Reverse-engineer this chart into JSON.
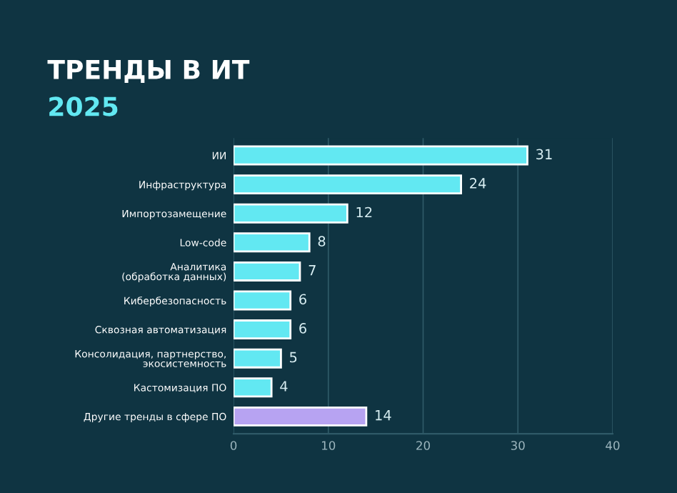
{
  "chart_data": {
    "type": "bar",
    "orientation": "horizontal",
    "title": "ТРЕНДЫ В ИТ",
    "subtitle": "2025",
    "categories": [
      "ИИ",
      "Инфраструктура",
      "Импортозамещение",
      "Low-code",
      "Аналитика\n(обработка данных)",
      "Кибербезопасность",
      "Сквозная автоматизация",
      "Консолидация, партнерство,\nэкосистемность",
      "Кастомизация ПО",
      "Другие тренды в сфере ПО"
    ],
    "values": [
      31,
      24,
      12,
      8,
      7,
      6,
      6,
      5,
      4,
      14
    ],
    "colors": [
      "#62e8f2",
      "#62e8f2",
      "#62e8f2",
      "#62e8f2",
      "#62e8f2",
      "#62e8f2",
      "#62e8f2",
      "#62e8f2",
      "#62e8f2",
      "#b7a3f2"
    ],
    "xlim": [
      0,
      40
    ],
    "xticks": [
      0,
      10,
      20,
      30,
      40
    ],
    "grid": "x",
    "data_labels": true
  }
}
